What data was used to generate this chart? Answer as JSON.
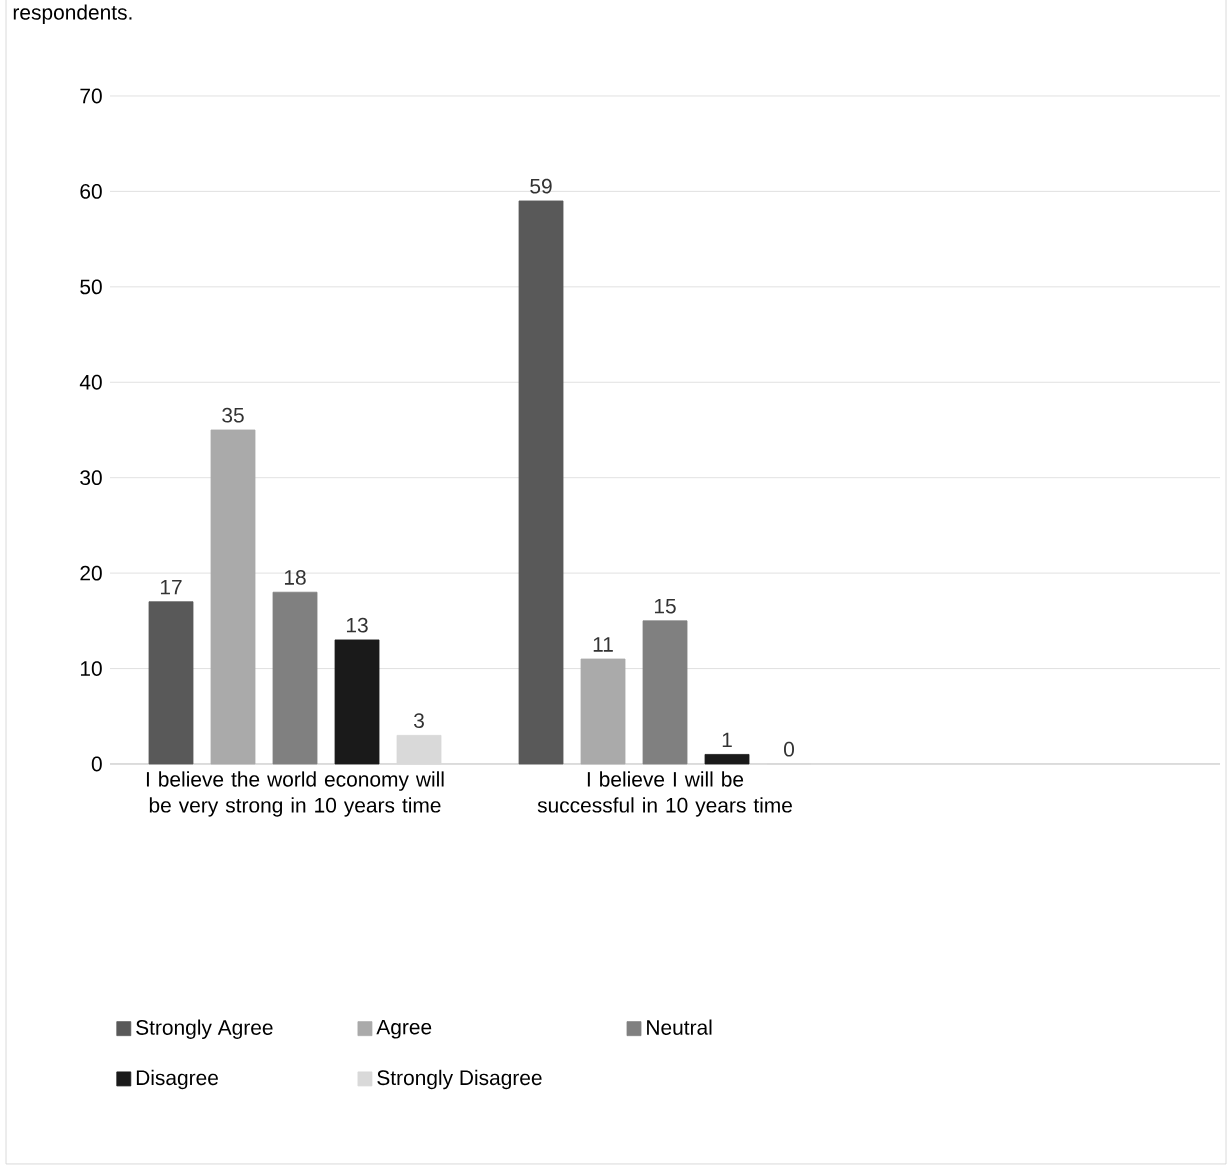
{
  "chart_data": {
    "type": "bar",
    "title": "respondents.",
    "categories": [
      "I believe the world economy will be very strong in 10 years time",
      "I believe I will be successful in 10 years time",
      null
    ],
    "series": [
      {
        "name": "Strongly Agree",
        "color": "#595959",
        "values": [
          17,
          59,
          null
        ]
      },
      {
        "name": "Agree",
        "color": "#aaaaaa",
        "values": [
          35,
          11,
          null
        ]
      },
      {
        "name": "Neutral",
        "color": "#808080",
        "values": [
          18,
          15,
          null
        ]
      },
      {
        "name": "Disagree",
        "color": "#1a1a1a",
        "values": [
          13,
          1,
          null
        ]
      },
      {
        "name": "Strongly Disagree",
        "color": "#d9d9d9",
        "values": [
          3,
          0,
          null
        ]
      }
    ],
    "ylim": [
      0,
      70
    ],
    "yticks": [
      0,
      10,
      20,
      30,
      40,
      50,
      60,
      70
    ],
    "grid": "y",
    "data_labels": true,
    "legend": "bottom"
  }
}
